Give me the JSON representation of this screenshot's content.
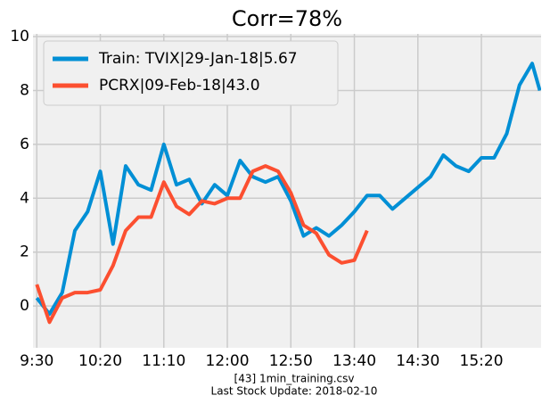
{
  "chart_data": {
    "type": "line",
    "title": "Corr=78%",
    "x": [
      0,
      10,
      20,
      30,
      40,
      50,
      60,
      70,
      80,
      90,
      100,
      110,
      120,
      130,
      140,
      150,
      160,
      170,
      180,
      190,
      200,
      210,
      220,
      230,
      240,
      250,
      260,
      270,
      280,
      290,
      300,
      310,
      320,
      330,
      340,
      350,
      360,
      370,
      380,
      390,
      396
    ],
    "series": [
      {
        "name": "Train: TVIX|29-Jan-18|5.67",
        "color": "#008fd5",
        "values": [
          0.3,
          -0.3,
          0.5,
          2.8,
          3.5,
          5.0,
          2.3,
          5.2,
          4.5,
          4.3,
          6.0,
          4.5,
          4.7,
          3.8,
          4.5,
          4.1,
          5.4,
          4.8,
          4.6,
          4.8,
          3.9,
          2.6,
          2.9,
          2.6,
          3.0,
          3.5,
          4.1,
          4.1,
          3.6,
          4.0,
          4.4,
          4.8,
          5.6,
          5.2,
          5.0,
          5.5,
          5.5,
          6.4,
          8.2,
          9.0,
          8.0
        ]
      },
      {
        "name": "PCRX|09-Feb-18|43.0",
        "color": "#fc4f30",
        "values": [
          0.8,
          -0.6,
          0.3,
          0.5,
          0.5,
          0.6,
          1.5,
          2.8,
          3.3,
          3.3,
          4.6,
          3.7,
          3.4,
          3.9,
          3.8,
          4.0,
          4.0,
          5.0,
          5.2,
          5.0,
          4.2,
          3.0,
          2.7,
          1.9,
          1.6,
          1.7,
          2.8,
          null,
          null,
          null,
          null,
          null,
          null,
          null,
          null,
          null,
          null,
          null,
          null,
          null,
          null
        ]
      }
    ],
    "xlim": [
      -3,
      397
    ],
    "xticks": [
      {
        "value": 0,
        "label": "9:30"
      },
      {
        "value": 50,
        "label": "10:20"
      },
      {
        "value": 100,
        "label": "11:10"
      },
      {
        "value": 150,
        "label": "12:00"
      },
      {
        "value": 200,
        "label": "12:50"
      },
      {
        "value": 250,
        "label": "13:40"
      },
      {
        "value": 300,
        "label": "14:30"
      },
      {
        "value": 350,
        "label": "15:20"
      }
    ],
    "ylim": [
      -1.55,
      10.1
    ],
    "yticks": [
      0,
      2,
      4,
      6,
      8,
      10
    ],
    "grid": true,
    "legend": "upper-left",
    "footer": [
      "[43] 1min_training.csv",
      "Last Stock Update: 2018-02-10"
    ]
  }
}
